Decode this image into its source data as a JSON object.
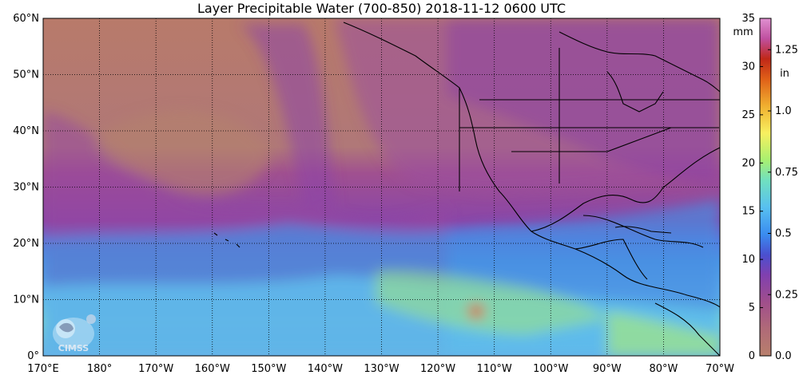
{
  "title": "Layer Precipitable Water (700-850)  2018-11-12 0600 UTC",
  "map": {
    "lat_range": [
      0,
      60
    ],
    "lon_range": [
      170,
      290
    ],
    "lat_ticks": [
      {
        "value": 0,
        "label": "0°"
      },
      {
        "value": 10,
        "label": "10°N"
      },
      {
        "value": 20,
        "label": "20°N"
      },
      {
        "value": 30,
        "label": "30°N"
      },
      {
        "value": 40,
        "label": "40°N"
      },
      {
        "value": 50,
        "label": "50°N"
      },
      {
        "value": 60,
        "label": "60°N"
      }
    ],
    "lon_ticks": [
      {
        "value": 170,
        "label": "170°E"
      },
      {
        "value": 180,
        "label": "180°"
      },
      {
        "value": 190,
        "label": "170°W"
      },
      {
        "value": 200,
        "label": "160°W"
      },
      {
        "value": 210,
        "label": "150°W"
      },
      {
        "value": 220,
        "label": "140°W"
      },
      {
        "value": 230,
        "label": "130°W"
      },
      {
        "value": 240,
        "label": "120°W"
      },
      {
        "value": 250,
        "label": "110°W"
      },
      {
        "value": 260,
        "label": "100°W"
      },
      {
        "value": 270,
        "label": "90°W"
      },
      {
        "value": 280,
        "label": "80°W"
      },
      {
        "value": 290,
        "label": "70°W"
      }
    ],
    "grid": "dotted",
    "colors": {
      "dry": "#b87a6a",
      "mid": "#9a4fa0",
      "moist": "#4a8ce0",
      "wet": "#8ef06a",
      "border": "#000000"
    }
  },
  "colorbar": {
    "mm_unit": "mm",
    "in_unit": "in",
    "mm_ticks": [
      {
        "value": 0,
        "label": "0"
      },
      {
        "value": 5,
        "label": "5"
      },
      {
        "value": 10,
        "label": "10"
      },
      {
        "value": 15,
        "label": "15"
      },
      {
        "value": 20,
        "label": "20"
      },
      {
        "value": 25,
        "label": "25"
      },
      {
        "value": 30,
        "label": "30"
      },
      {
        "value": 35,
        "label": "35"
      }
    ],
    "in_ticks": [
      {
        "value": 0.0,
        "label": "0.0"
      },
      {
        "value": 0.25,
        "label": "0.25"
      },
      {
        "value": 0.5,
        "label": "0.5"
      },
      {
        "value": 0.75,
        "label": "0.75"
      },
      {
        "value": 1.0,
        "label": "1.0"
      },
      {
        "value": 1.25,
        "label": "1.25"
      }
    ],
    "range_mm": [
      0,
      35
    ],
    "stops": [
      {
        "at": 0.0,
        "color": "#b8806c"
      },
      {
        "at": 0.08,
        "color": "#b06a78"
      },
      {
        "at": 0.16,
        "color": "#a04e8c"
      },
      {
        "at": 0.24,
        "color": "#8040b0"
      },
      {
        "at": 0.3,
        "color": "#4a50d0"
      },
      {
        "at": 0.36,
        "color": "#3a8cf0"
      },
      {
        "at": 0.44,
        "color": "#58c0f0"
      },
      {
        "at": 0.52,
        "color": "#70e0c0"
      },
      {
        "at": 0.58,
        "color": "#a8f070"
      },
      {
        "at": 0.66,
        "color": "#f8f060"
      },
      {
        "at": 0.74,
        "color": "#f0b030"
      },
      {
        "at": 0.82,
        "color": "#e06018"
      },
      {
        "at": 0.88,
        "color": "#c02818"
      },
      {
        "at": 0.94,
        "color": "#c050a0"
      },
      {
        "at": 1.0,
        "color": "#e090d0"
      }
    ]
  },
  "logo": {
    "text": "CIMSS",
    "icon": "cimss-satellite-logo-icon"
  }
}
